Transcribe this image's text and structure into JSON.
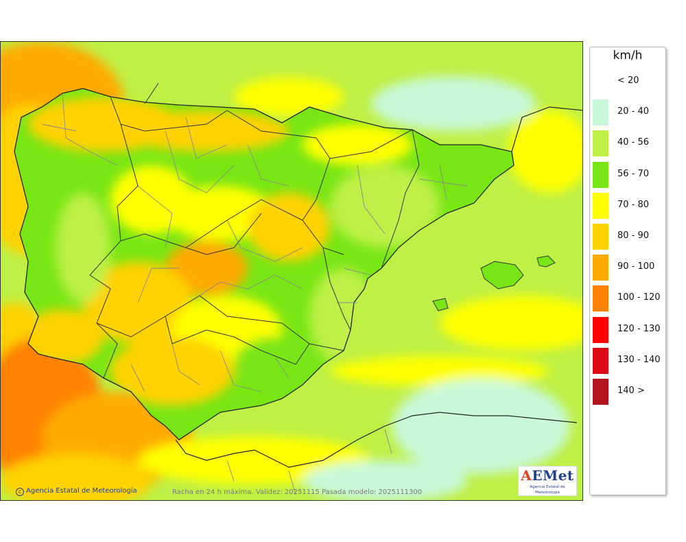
{
  "map": {
    "caption": "Racha en 24 h máxima. Validez: 20251115 Pasada modelo: 2025111300",
    "credit": "Agencia Estatal de Meteorología",
    "logo": {
      "word_a": "A",
      "word_rest": "EMet",
      "subtitle": "Agencia Estatal de Meteorología"
    }
  },
  "legend": {
    "unit": "km/h",
    "classes": [
      {
        "label": "< 20",
        "color": "#ffffff"
      },
      {
        "label": "20 - 40",
        "color": "#c8f8d8"
      },
      {
        "label": "40 - 56",
        "color": "#bef046"
      },
      {
        "label": "56 - 70",
        "color": "#78e614"
      },
      {
        "label": "70 - 80",
        "color": "#ffff00"
      },
      {
        "label": "80 - 90",
        "color": "#ffd200"
      },
      {
        "label": "90 - 100",
        "color": "#ffaa00"
      },
      {
        "label": "100 - 120",
        "color": "#ff8200"
      },
      {
        "label": "120 - 130",
        "color": "#ff0000"
      },
      {
        "label": "130 - 140",
        "color": "#dc0a14"
      },
      {
        "label": "140 >",
        "color": "#b41420"
      }
    ]
  }
}
